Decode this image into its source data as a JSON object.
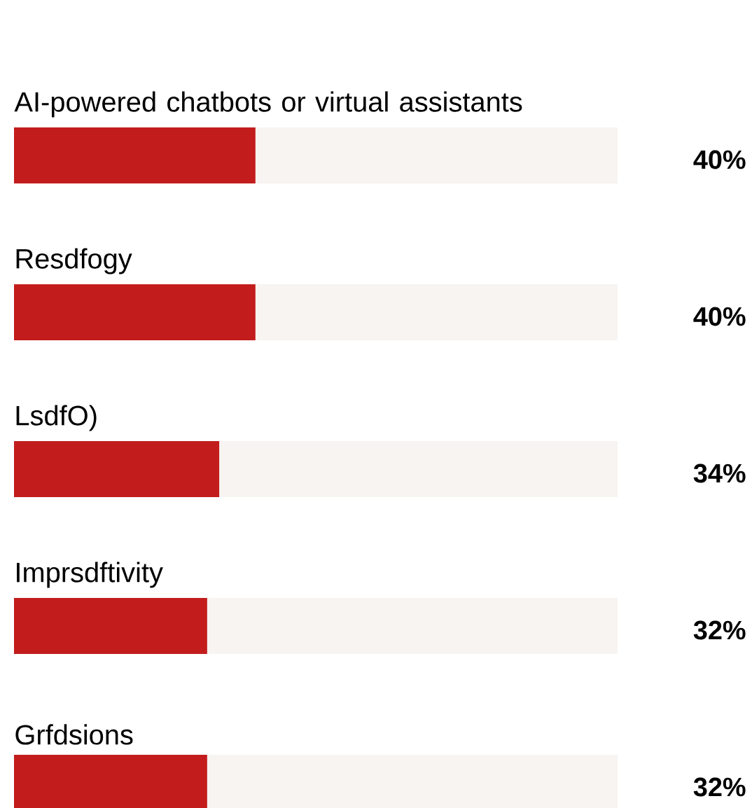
{
  "chart_data": {
    "type": "bar",
    "orientation": "horizontal",
    "categories": [
      "AI-powered chatbots or virtual assistants",
      "Resdfogy",
      "LsdfO)",
      "Imprsdftivity",
      "Grfdsions"
    ],
    "values": [
      40,
      40,
      34,
      32,
      32
    ],
    "value_labels": [
      "40%",
      "40%",
      "34%",
      "32%",
      "32%"
    ],
    "color": "#c21d1c",
    "xlim": [
      0,
      100
    ],
    "grid": false
  }
}
